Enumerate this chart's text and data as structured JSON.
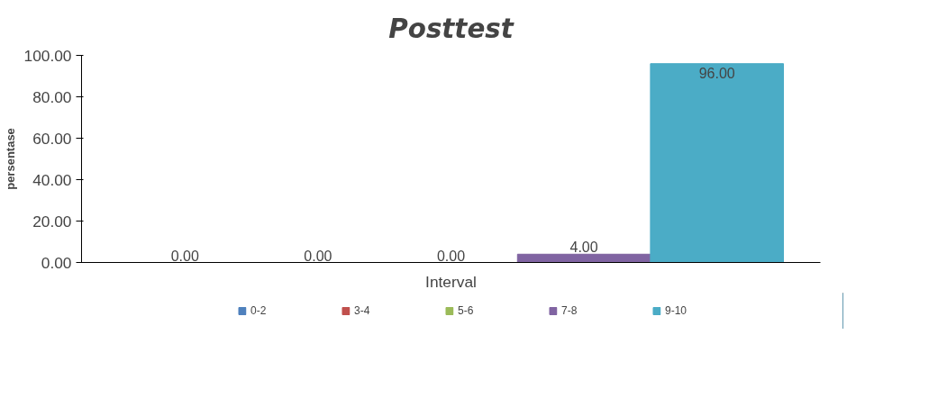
{
  "chart_data": {
    "type": "bar",
    "title": "Posttest",
    "xlabel": "Interval",
    "ylabel": "persentase",
    "categories": [
      null
    ],
    "series": [
      {
        "name": "0-2",
        "color": "#4f81bd",
        "values": [
          0
        ],
        "value_labels": [
          "0.00"
        ]
      },
      {
        "name": "3-4",
        "color": "#c0504d",
        "values": [
          0
        ],
        "value_labels": [
          "0.00"
        ]
      },
      {
        "name": "5-6",
        "color": "#9bbb59",
        "values": [
          0
        ],
        "value_labels": [
          "0.00"
        ]
      },
      {
        "name": "7-8",
        "color": "#8064a2",
        "values": [
          4
        ],
        "value_labels": [
          "4.00"
        ]
      },
      {
        "name": "9-10",
        "color": "#4bacc6",
        "values": [
          96
        ],
        "value_labels": [
          "96.00"
        ]
      }
    ],
    "ylim": [
      0,
      100
    ],
    "yticks": [
      {
        "value": 0,
        "label": "0.00"
      },
      {
        "value": 20,
        "label": "20.00"
      },
      {
        "value": 40,
        "label": "40.00"
      },
      {
        "value": 60,
        "label": "60.00"
      },
      {
        "value": 80,
        "label": "80.00"
      },
      {
        "value": 100,
        "label": "100.00"
      }
    ],
    "grid": false,
    "legend": "bottom"
  }
}
